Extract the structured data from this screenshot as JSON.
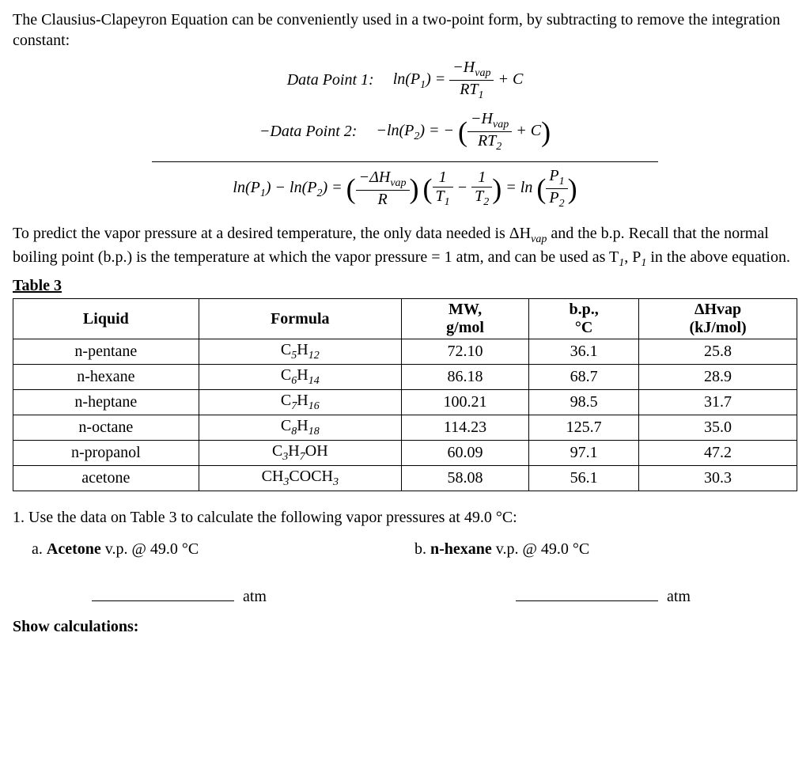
{
  "intro": "The Clausius-Clapeyron Equation can be conveniently used in a two-point form, by subtracting to remove the integration constant:",
  "eq_labels": {
    "point1": "Data Point 1:",
    "point2": "−Data Point 2:"
  },
  "mid_paragraph": "To predict the vapor pressure at a desired temperature, the only data needed is ΔH",
  "mid_paragraph2": " and the b.p. Recall that the normal boiling point (b.p.) is the temperature at which the vapor pressure = 1 atm, and can be used as T",
  "mid_paragraph3": ", P",
  "mid_paragraph4": " in the above equation.",
  "vap_sub": "vap",
  "one_sub": "1",
  "table_title": "Table 3",
  "table": {
    "columns": [
      {
        "line1": "Liquid",
        "line2": ""
      },
      {
        "line1": "Formula",
        "line2": ""
      },
      {
        "line1": "MW,",
        "line2": "g/mol"
      },
      {
        "line1": "b.p.,",
        "line2": "°C"
      },
      {
        "line1": "ΔHvap",
        "line2": "(kJ/mol)"
      }
    ],
    "rows": [
      {
        "liquid": "n-pentane",
        "formula_base": "C",
        "s1": "5",
        "h": "H",
        "s2": "12",
        "extra": "",
        "mw": "72.10",
        "bp": "36.1",
        "dh": "25.8"
      },
      {
        "liquid": "n-hexane",
        "formula_base": "C",
        "s1": "6",
        "h": "H",
        "s2": "14",
        "extra": "",
        "mw": "86.18",
        "bp": "68.7",
        "dh": "28.9"
      },
      {
        "liquid": "n-heptane",
        "formula_base": "C",
        "s1": "7",
        "h": "H",
        "s2": "16",
        "extra": "",
        "mw": "100.21",
        "bp": "98.5",
        "dh": "31.7"
      },
      {
        "liquid": "n-octane",
        "formula_base": "C",
        "s1": "8",
        "h": "H",
        "s2": "18",
        "extra": "",
        "mw": "114.23",
        "bp": "125.7",
        "dh": "35.0"
      },
      {
        "liquid": "n-propanol",
        "formula_base": "C",
        "s1": "3",
        "h": "H",
        "s2": "7",
        "extra": "OH",
        "mw": "60.09",
        "bp": "97.1",
        "dh": "47.2"
      },
      {
        "liquid": "acetone",
        "formula_base": "CH",
        "s1": "3",
        "h": "COCH",
        "s2": "3",
        "extra": "",
        "mw": "58.08",
        "bp": "56.1",
        "dh": "30.3"
      }
    ]
  },
  "question1": "1.   Use the data on Table 3 to calculate the following vapor pressures at 49.0 °C:",
  "q1a_prefix": "a.   ",
  "q1a_bold": "Acetone",
  "q1a_rest": " v.p. @ 49.0 °C",
  "q1b_prefix": "b. ",
  "q1b_bold": "n-hexane",
  "q1b_rest": " v.p. @ 49.0 °C",
  "atm": "atm",
  "show_calc": "Show calculations:"
}
